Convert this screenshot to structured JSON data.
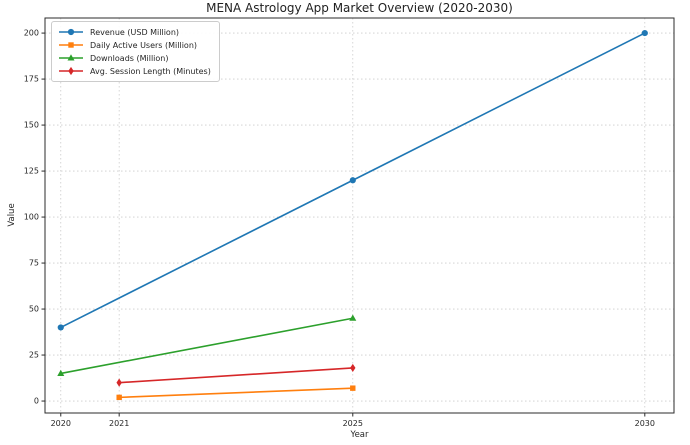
{
  "chart_data": {
    "type": "line",
    "title": "MENA Astrology App Market Overview (2020-2030)",
    "xlabel": "Year",
    "ylabel": "Value",
    "x_ticks": [
      2020,
      2021,
      2025,
      2030
    ],
    "y_ticks": [
      0,
      25,
      50,
      75,
      100,
      125,
      150,
      175,
      200
    ],
    "xlim": [
      2019.73,
      2030.5
    ],
    "ylim": [
      -6.5,
      208.2
    ],
    "grid": "dotted-both-axes",
    "legend_position": "upper-left",
    "series": [
      {
        "name": "Revenue (USD Million)",
        "color": "#1f77b4",
        "marker": "circle",
        "x": [
          2020,
          2025,
          2030
        ],
        "y": [
          40,
          120,
          200
        ]
      },
      {
        "name": "Daily Active Users (Million)",
        "color": "#ff7f0e",
        "marker": "square",
        "x": [
          2021,
          2025
        ],
        "y": [
          2,
          7
        ]
      },
      {
        "name": "Downloads (Million)",
        "color": "#2ca02c",
        "marker": "triangle",
        "x": [
          2020,
          2025
        ],
        "y": [
          15,
          45
        ]
      },
      {
        "name": "Avg. Session Length (Minutes)",
        "color": "#d62728",
        "marker": "diamond",
        "x": [
          2021,
          2025
        ],
        "y": [
          10,
          18
        ]
      }
    ],
    "colors": {
      "grid": "#cccccc",
      "spine": "#2b2b2b",
      "text": "#262626"
    }
  }
}
